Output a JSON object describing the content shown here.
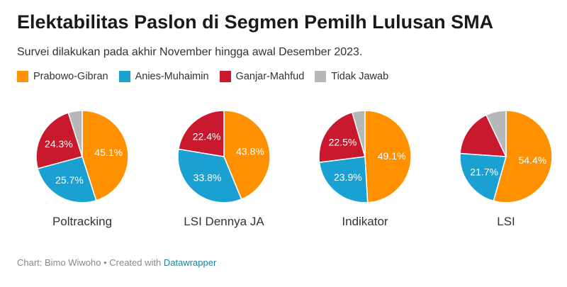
{
  "header": {
    "title": "Elektabilitas Paslon di Segmen Pemilh Lulusan SMA",
    "subtitle": "Survei dilakukan pada akhir November hingga awal Desember 2023."
  },
  "footer": {
    "credit": "Chart: Bimo Wiwoho • Created with ",
    "link": "Datawrapper"
  },
  "colors": {
    "prabowo": "#ff9100",
    "anies": "#1aa1d2",
    "ganjar": "#c9192e",
    "tidak_jawab": "#b7b7b7"
  },
  "chart_data": {
    "type": "pie",
    "legend": [
      "Prabowo-Gibran",
      "Anies-Muhaimin",
      "Ganjar-Mahfud",
      "Tidak Jawab"
    ],
    "legend_placement": "top",
    "charts": [
      {
        "name": "Poltracking",
        "values": [
          45.1,
          25.7,
          24.3,
          4.9
        ],
        "labels": [
          "45.1%",
          "25.7%",
          "24.3%",
          ""
        ]
      },
      {
        "name": "LSI Dennya JA",
        "values": [
          43.8,
          33.8,
          22.4,
          0
        ],
        "labels": [
          "43.8%",
          "33.8%",
          "22.4%",
          ""
        ]
      },
      {
        "name": "Indikator",
        "values": [
          49.1,
          23.9,
          22.5,
          4.5
        ],
        "labels": [
          "49.1%",
          "23.9%",
          "22.5%",
          ""
        ]
      },
      {
        "name": "LSI",
        "values": [
          54.4,
          21.7,
          16.8,
          7.1
        ],
        "labels": [
          "54.4%",
          "21.7%",
          "",
          ""
        ]
      }
    ]
  }
}
